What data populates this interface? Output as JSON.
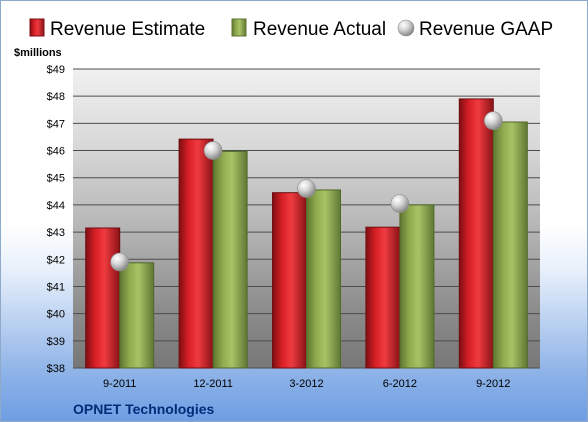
{
  "colors": {
    "estimate": "#d81f26",
    "actual": "#8faa4e",
    "gaap": "#c9c9c9"
  },
  "chart_data": {
    "type": "bar",
    "categories": [
      "9-2011",
      "12-2011",
      "3-2012",
      "6-2012",
      "9-2012"
    ],
    "series": [
      {
        "name": "Revenue Estimate",
        "kind": "bar",
        "values": [
          43.15,
          46.42,
          44.45,
          43.18,
          47.9
        ]
      },
      {
        "name": "Revenue Actual",
        "kind": "bar",
        "values": [
          41.87,
          45.97,
          44.55,
          44.0,
          47.05
        ]
      },
      {
        "name": "Revenue GAAP",
        "kind": "marker",
        "values": [
          41.9,
          46.0,
          44.6,
          44.05,
          47.1
        ]
      }
    ],
    "ylim": [
      38,
      49
    ],
    "yticks": [
      "$38",
      "$39",
      "$40",
      "$41",
      "$42",
      "$43",
      "$44",
      "$45",
      "$46",
      "$47",
      "$48",
      "$49"
    ],
    "ylabel": "$millions",
    "footer": "OPNET Technologies",
    "grid": true,
    "legend_position": "top"
  }
}
